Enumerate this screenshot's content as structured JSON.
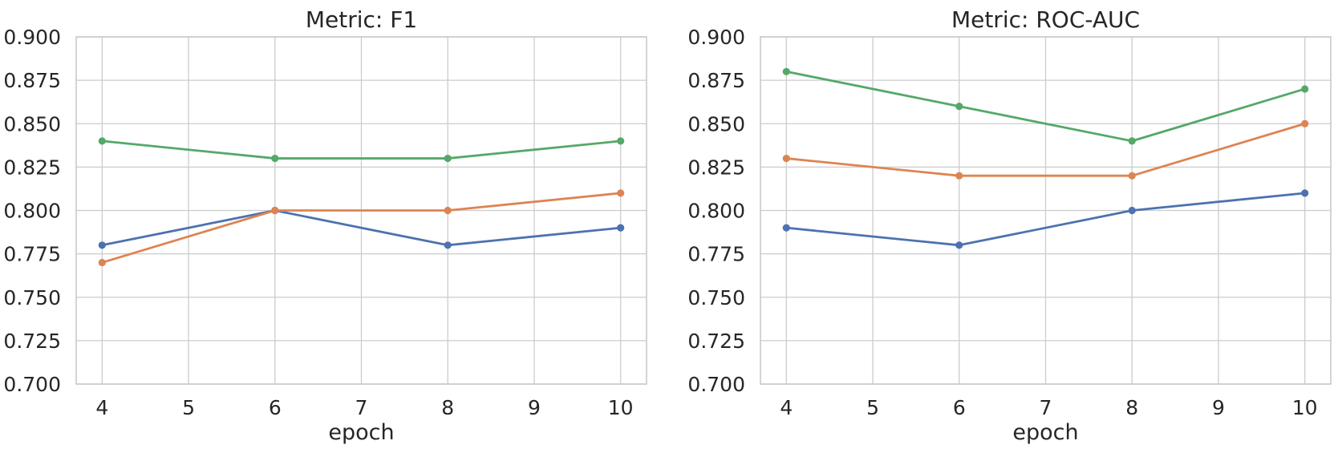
{
  "figure": {
    "background": "#ffffff",
    "text_color": "#262626",
    "grid_color": "#cccccc",
    "spine_color": "#c9c9c9"
  },
  "chart_data": [
    {
      "type": "line",
      "title": "Metric: F1",
      "xlabel": "epoch",
      "ylabel": "",
      "x": [
        4,
        6,
        8,
        10
      ],
      "xlim": [
        3.7,
        10.3
      ],
      "ylim": [
        0.7,
        0.9
      ],
      "xticks": [
        4,
        5,
        6,
        7,
        8,
        9,
        10
      ],
      "xticklabels": [
        "4",
        "5",
        "6",
        "7",
        "8",
        "9",
        "10"
      ],
      "yticks": [
        0.7,
        0.725,
        0.75,
        0.775,
        0.8,
        0.825,
        0.85,
        0.875,
        0.9
      ],
      "yticklabels": [
        "0.700",
        "0.725",
        "0.750",
        "0.775",
        "0.800",
        "0.825",
        "0.850",
        "0.875",
        "0.900"
      ],
      "grid": true,
      "legend": false,
      "marker": "circle",
      "series": [
        {
          "name": "series-blue",
          "color": "#4C72B0",
          "values": [
            0.78,
            0.8,
            0.78,
            0.79
          ]
        },
        {
          "name": "series-orange",
          "color": "#DD8452",
          "values": [
            0.77,
            0.8,
            0.8,
            0.81
          ]
        },
        {
          "name": "series-green",
          "color": "#55A868",
          "values": [
            0.84,
            0.83,
            0.83,
            0.84
          ]
        }
      ]
    },
    {
      "type": "line",
      "title": "Metric: ROC-AUC",
      "xlabel": "epoch",
      "ylabel": "",
      "x": [
        4,
        6,
        8,
        10
      ],
      "xlim": [
        3.7,
        10.3
      ],
      "ylim": [
        0.7,
        0.9
      ],
      "xticks": [
        4,
        5,
        6,
        7,
        8,
        9,
        10
      ],
      "xticklabels": [
        "4",
        "5",
        "6",
        "7",
        "8",
        "9",
        "10"
      ],
      "yticks": [
        0.7,
        0.725,
        0.75,
        0.775,
        0.8,
        0.825,
        0.85,
        0.875,
        0.9
      ],
      "yticklabels": [
        "0.700",
        "0.725",
        "0.750",
        "0.775",
        "0.800",
        "0.825",
        "0.850",
        "0.875",
        "0.900"
      ],
      "grid": true,
      "legend": false,
      "marker": "circle",
      "series": [
        {
          "name": "series-blue",
          "color": "#4C72B0",
          "values": [
            0.79,
            0.78,
            0.8,
            0.81
          ]
        },
        {
          "name": "series-orange",
          "color": "#DD8452",
          "values": [
            0.83,
            0.82,
            0.82,
            0.85
          ]
        },
        {
          "name": "series-green",
          "color": "#55A868",
          "values": [
            0.88,
            0.86,
            0.84,
            0.87
          ]
        }
      ]
    }
  ]
}
